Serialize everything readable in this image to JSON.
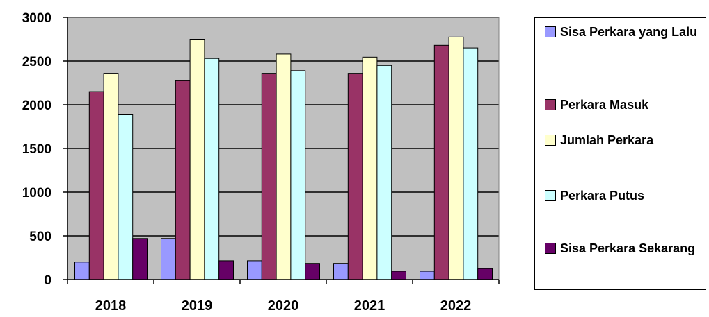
{
  "colors": {
    "plot_bg": "#c0c0c0",
    "grid": "#000000",
    "series": [
      "#9999ff",
      "#993366",
      "#ffffcc",
      "#ccffff",
      "#660066"
    ]
  },
  "chart_data": {
    "type": "bar",
    "title": "",
    "xlabel": "",
    "ylabel": "",
    "categories": [
      "2018",
      "2019",
      "2020",
      "2021",
      "2022"
    ],
    "ylim": [
      0,
      3000
    ],
    "yticks": [
      "0",
      "500",
      "1000",
      "1500",
      "2000",
      "2500",
      "3000"
    ],
    "grid": true,
    "legend_position": "right",
    "series": [
      {
        "name": "Sisa Perkara yang Lalu",
        "values": [
          200,
          470,
          215,
          185,
          95
        ]
      },
      {
        "name": "Perkara Masuk",
        "values": [
          2150,
          2275,
          2360,
          2360,
          2680
        ]
      },
      {
        "name": "Jumlah Perkara",
        "values": [
          2360,
          2750,
          2580,
          2545,
          2775
        ]
      },
      {
        "name": "Perkara Putus",
        "values": [
          1885,
          2530,
          2390,
          2450,
          2650
        ]
      },
      {
        "name": "Sisa Perkara Sekarang",
        "values": [
          470,
          215,
          185,
          95,
          125
        ]
      }
    ]
  }
}
